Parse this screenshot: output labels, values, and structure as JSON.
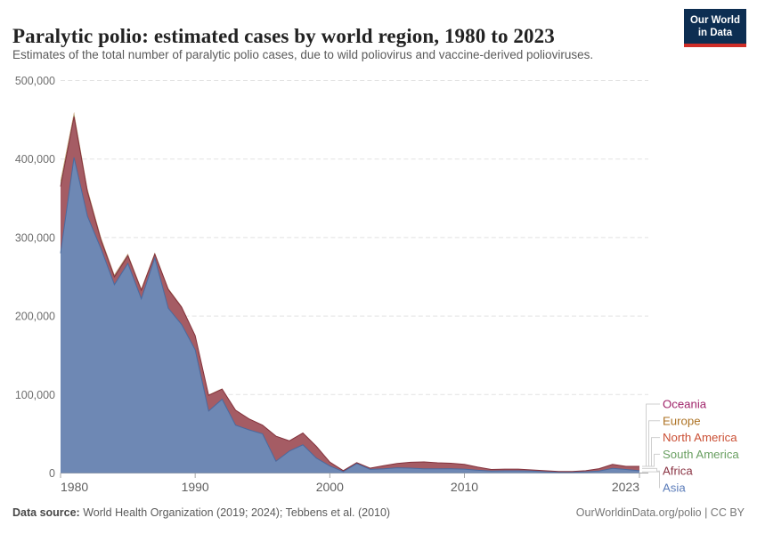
{
  "header": {
    "title": "Paralytic polio: estimated cases by world region, 1980 to 2023",
    "subtitle": "Estimates of the total number of paralytic polio cases, due to wild poliovirus and vaccine-derived polioviruses.",
    "logo": {
      "line1": "Our World",
      "line2": "in Data",
      "bg_color": "#0d2e52",
      "accent_color": "#cf2d27"
    }
  },
  "footer": {
    "source_label": "Data source:",
    "source_text": " World Health Organization (2019; 2024); Tebbens et al. (2010)",
    "link_text": "OurWorldinData.org/polio | CC BY"
  },
  "chart_data": {
    "type": "area",
    "stacked": true,
    "title": "Paralytic polio: estimated cases by world region, 1980 to 2023",
    "xlabel": "",
    "ylabel": "",
    "ylim": [
      0,
      500000
    ],
    "grid": "horizontal-dashed",
    "legend_position": "right",
    "yticks": [
      {
        "value": 0,
        "label": "0"
      },
      {
        "value": 100000,
        "label": "100,000"
      },
      {
        "value": 200000,
        "label": "200,000"
      },
      {
        "value": 300000,
        "label": "300,000"
      },
      {
        "value": 400000,
        "label": "400,000"
      },
      {
        "value": 500000,
        "label": "500,000"
      }
    ],
    "xticks": [
      {
        "value": 1980,
        "label": "1980"
      },
      {
        "value": 1990,
        "label": "1990"
      },
      {
        "value": 2000,
        "label": "2000"
      },
      {
        "value": 2010,
        "label": "2010"
      },
      {
        "value": 2023,
        "label": "2023"
      }
    ],
    "x": [
      1980,
      1981,
      1982,
      1983,
      1984,
      1985,
      1986,
      1987,
      1988,
      1989,
      1990,
      1991,
      1992,
      1993,
      1994,
      1995,
      1996,
      1997,
      1998,
      1999,
      2000,
      2001,
      2002,
      2003,
      2004,
      2005,
      2006,
      2007,
      2008,
      2009,
      2010,
      2011,
      2012,
      2013,
      2014,
      2015,
      2016,
      2017,
      2018,
      2019,
      2020,
      2021,
      2022,
      2023
    ],
    "series": [
      {
        "name": "asia",
        "label": "Asia",
        "color": "#5b7cb9",
        "fill": "#6e88b4",
        "stroke": "#4a6a9f",
        "values": [
          280000,
          402000,
          327000,
          286000,
          240000,
          267000,
          222000,
          274000,
          210000,
          189000,
          157000,
          79000,
          94000,
          61000,
          55000,
          50000,
          15000,
          28000,
          36000,
          19000,
          9000,
          1800,
          12000,
          4700,
          5400,
          6600,
          6200,
          5400,
          5400,
          5500,
          5000,
          3500,
          2500,
          2800,
          2800,
          2500,
          1500,
          1000,
          1000,
          1500,
          2500,
          6000,
          4500,
          3000
        ]
      },
      {
        "name": "africa",
        "label": "Africa",
        "color": "#8b3545",
        "fill": "#a55c64",
        "stroke": "#83323c",
        "values": [
          85000,
          52000,
          31000,
          11000,
          10000,
          10000,
          11000,
          5000,
          24000,
          22000,
          18000,
          20000,
          13000,
          19000,
          14000,
          11000,
          32000,
          13000,
          15000,
          15000,
          5000,
          1200,
          1200,
          1500,
          3900,
          5600,
          7600,
          8800,
          7600,
          7000,
          6000,
          4000,
          2000,
          2200,
          2200,
          1500,
          1500,
          1000,
          1000,
          1500,
          3000,
          5000,
          4000,
          5500
        ]
      },
      {
        "name": "south-america",
        "label": "South America",
        "color": "#699f61",
        "fill": "#7da674",
        "stroke": "#699f61",
        "values": [
          5000,
          3500,
          2500,
          2000,
          1700,
          1500,
          1300,
          1100,
          900,
          800,
          600,
          500,
          400,
          300,
          200,
          150,
          100,
          80,
          60,
          40,
          20,
          10,
          8,
          5,
          4,
          3,
          3,
          2,
          2,
          2,
          2,
          1,
          1,
          1,
          1,
          1,
          1,
          0,
          0,
          0,
          0,
          0,
          0,
          0
        ]
      },
      {
        "name": "north-america",
        "label": "North America",
        "color": "#ca4f34",
        "fill": "#d3755e",
        "stroke": "#ca4f34",
        "values": [
          600,
          400,
          300,
          200,
          150,
          120,
          100,
          80,
          60,
          50,
          40,
          30,
          20,
          15,
          10,
          8,
          6,
          5,
          4,
          3,
          2,
          2,
          1,
          1,
          1,
          1,
          1,
          1,
          1,
          1,
          1,
          0,
          0,
          0,
          0,
          0,
          0,
          0,
          0,
          0,
          0,
          0,
          0,
          0
        ]
      },
      {
        "name": "europe",
        "label": "Europe",
        "color": "#ad7223",
        "fill": "#c0914f",
        "stroke": "#ad7223",
        "values": [
          2500,
          2000,
          1500,
          1200,
          1000,
          900,
          800,
          700,
          600,
          500,
          400,
          350,
          300,
          250,
          200,
          150,
          120,
          100,
          80,
          60,
          40,
          30,
          20,
          15,
          10,
          8,
          6,
          5,
          4,
          3,
          3,
          2,
          2,
          1,
          1,
          1,
          1,
          1,
          1,
          1,
          1,
          1,
          1,
          1
        ]
      },
      {
        "name": "oceania",
        "label": "Oceania",
        "color": "#a0246a",
        "fill": "#b2538f",
        "stroke": "#a0246a",
        "values": [
          150,
          120,
          100,
          80,
          70,
          60,
          50,
          40,
          30,
          30,
          20,
          20,
          15,
          10,
          8,
          6,
          5,
          4,
          3,
          2,
          2,
          1,
          1,
          1,
          1,
          1,
          1,
          0,
          0,
          0,
          0,
          0,
          0,
          0,
          0,
          0,
          0,
          0,
          0,
          0,
          0,
          0,
          0,
          0
        ]
      }
    ]
  }
}
